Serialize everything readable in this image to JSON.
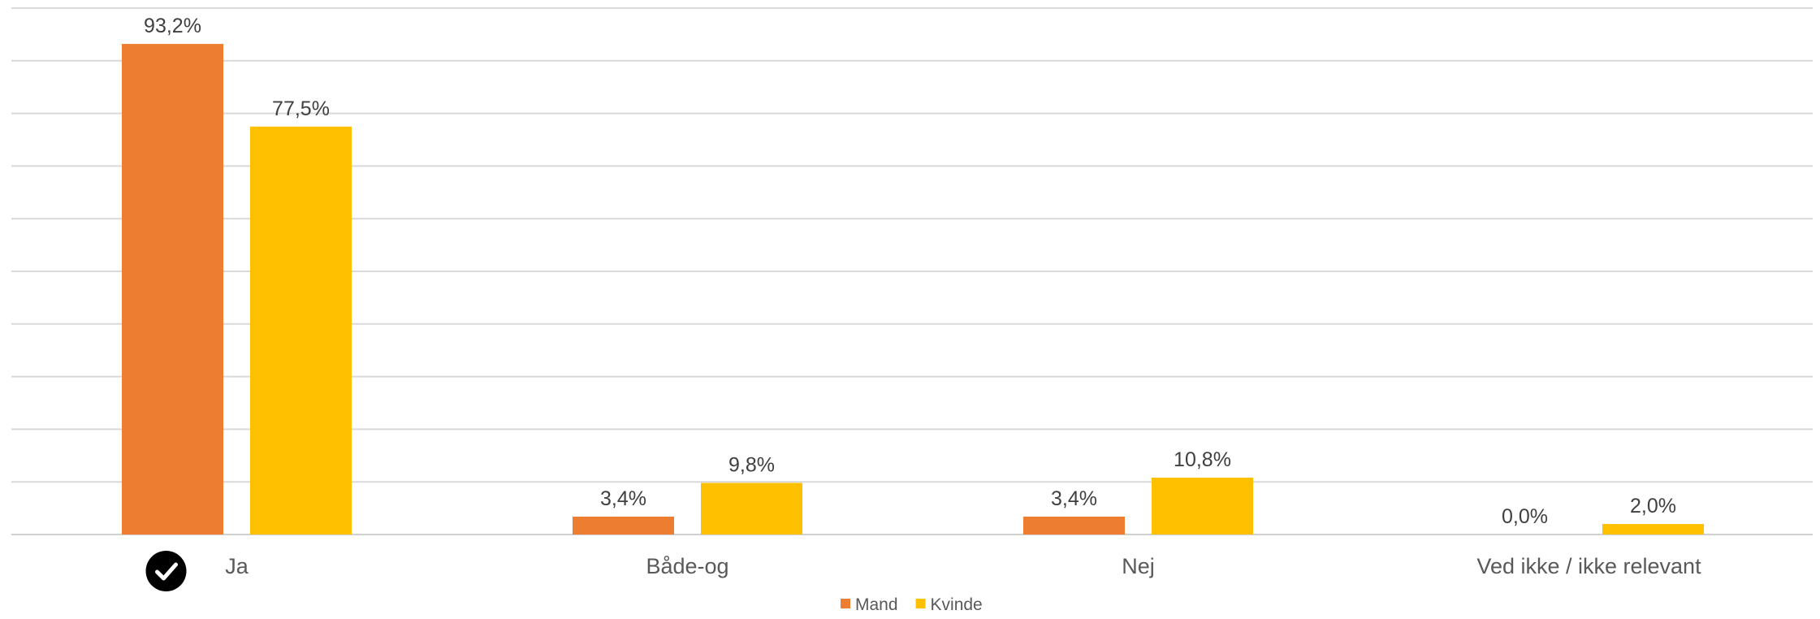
{
  "chart_data": {
    "type": "bar",
    "categories": [
      "Ja",
      "Både-og",
      "Nej",
      "Ved ikke / ikke relevant"
    ],
    "series": [
      {
        "name": "Mand",
        "color": "#ED7D31",
        "values": [
          93.2,
          3.4,
          3.4,
          0.0
        ],
        "labels": [
          "93,2%",
          "3,4%",
          "3,4%",
          "0,0%"
        ]
      },
      {
        "name": "Kvinde",
        "color": "#FFC000",
        "values": [
          77.5,
          9.8,
          10.8,
          2.0
        ],
        "labels": [
          "77,5%",
          "9,8%",
          "10,8%",
          "2,0%"
        ]
      }
    ],
    "ylim": [
      0,
      100
    ],
    "grid": true,
    "gridline_step": 10,
    "legend_position": "bottom-center",
    "check_icon": "check-circle-icon",
    "check_category": "Ja"
  }
}
